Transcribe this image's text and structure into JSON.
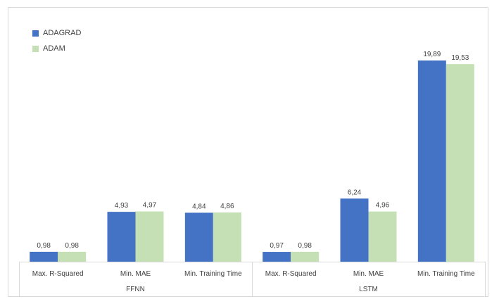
{
  "chart_data": {
    "type": "bar",
    "legend_position": "top-left",
    "grid": false,
    "groups": [
      {
        "label": "FFNN",
        "categories": [
          "Max. R-Squared",
          "Min. MAE",
          "Min. Training Time"
        ]
      },
      {
        "label": "LSTM",
        "categories": [
          "Max. R-Squared",
          "Min. MAE",
          "Min. Training Time"
        ]
      }
    ],
    "series": [
      {
        "name": "ADAGRAD",
        "color": "#4472c4",
        "values": [
          0.98,
          4.93,
          4.84,
          0.97,
          6.24,
          19.89
        ],
        "labels": [
          "0,98",
          "4,93",
          "4,84",
          "0,97",
          "6,24",
          "19,89"
        ]
      },
      {
        "name": "ADAM",
        "color": "#c5e0b4",
        "values": [
          0.98,
          4.97,
          4.86,
          0.98,
          4.96,
          19.53
        ],
        "labels": [
          "0,98",
          "4,97",
          "4,86",
          "0,98",
          "4,96",
          "19,53"
        ]
      }
    ],
    "ylim": [
      0,
      22
    ]
  }
}
